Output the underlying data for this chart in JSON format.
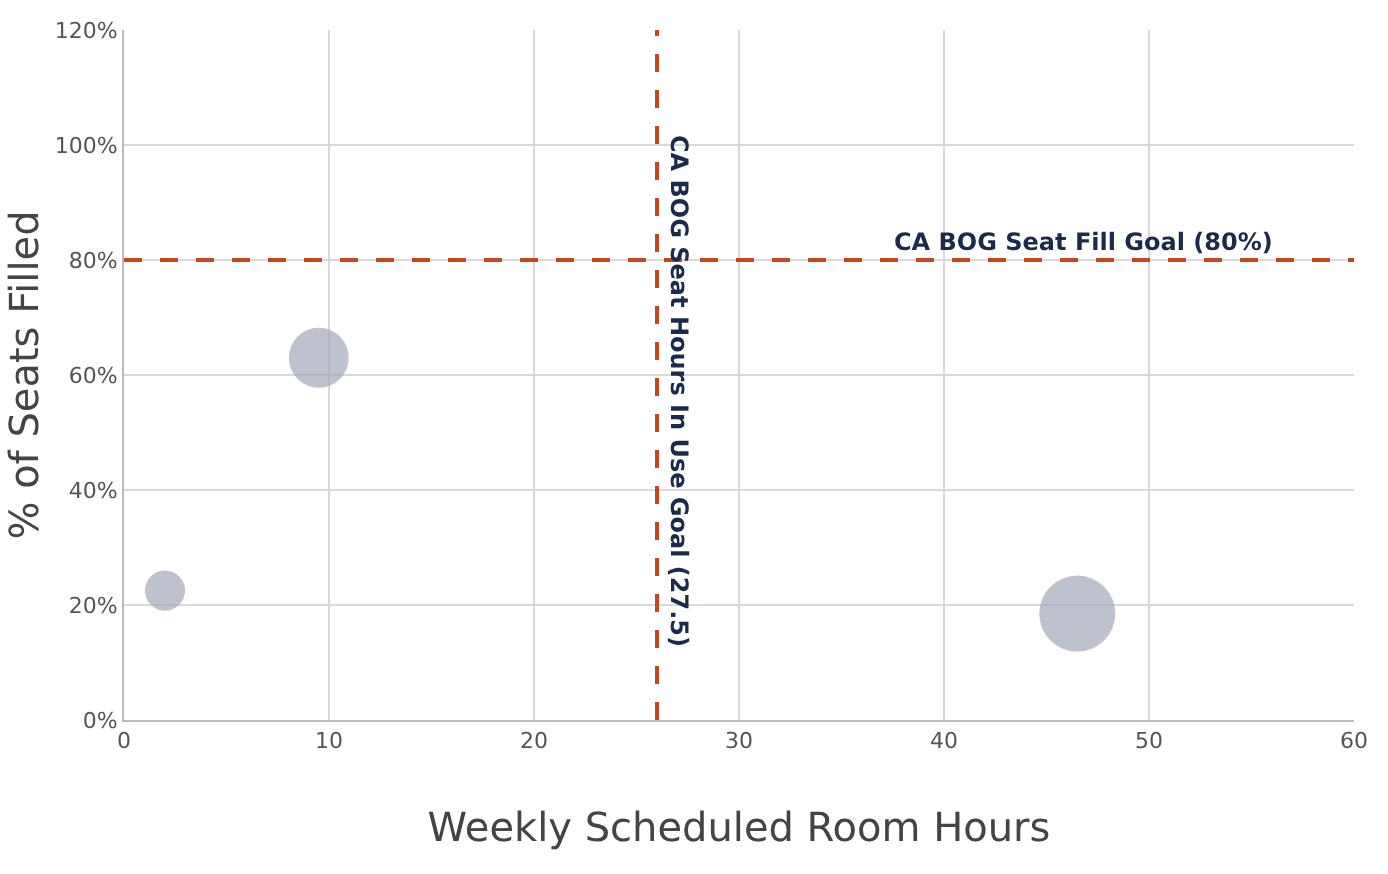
{
  "chart_data": {
    "type": "bubble",
    "xlabel": "Weekly Scheduled Room Hours",
    "ylabel": "% of Seats Filled",
    "x": [
      2,
      9.5,
      46.5
    ],
    "values": [
      22.5,
      63,
      18.5
    ],
    "sizes": [
      0.28,
      0.62,
      1
    ],
    "color": "#a3a8ba",
    "xlim": [
      0,
      60
    ],
    "xticks": [
      0,
      10,
      20,
      30,
      40,
      50,
      60
    ],
    "ylim": [
      0,
      120
    ],
    "yticks": [
      {
        "value": 0,
        "label": "0%"
      },
      {
        "value": 20,
        "label": "20%"
      },
      {
        "value": 40,
        "label": "40%"
      },
      {
        "value": 60,
        "label": "60%"
      },
      {
        "value": 80,
        "label": "80%"
      },
      {
        "value": 100,
        "label": "100%"
      },
      {
        "value": 120,
        "label": "120%"
      }
    ],
    "grid": true,
    "ref_lines": [
      {
        "axis": "x",
        "value": 26,
        "label": "CA BOG Seat Hours In Use Goal (27.5)",
        "color": "#c8461e",
        "line_style": "dashed"
      },
      {
        "axis": "y",
        "value": 80,
        "label": "CA BOG Seat Fill Goal (80%)",
        "color": "#c8461e",
        "line_style": "dashed"
      }
    ]
  }
}
